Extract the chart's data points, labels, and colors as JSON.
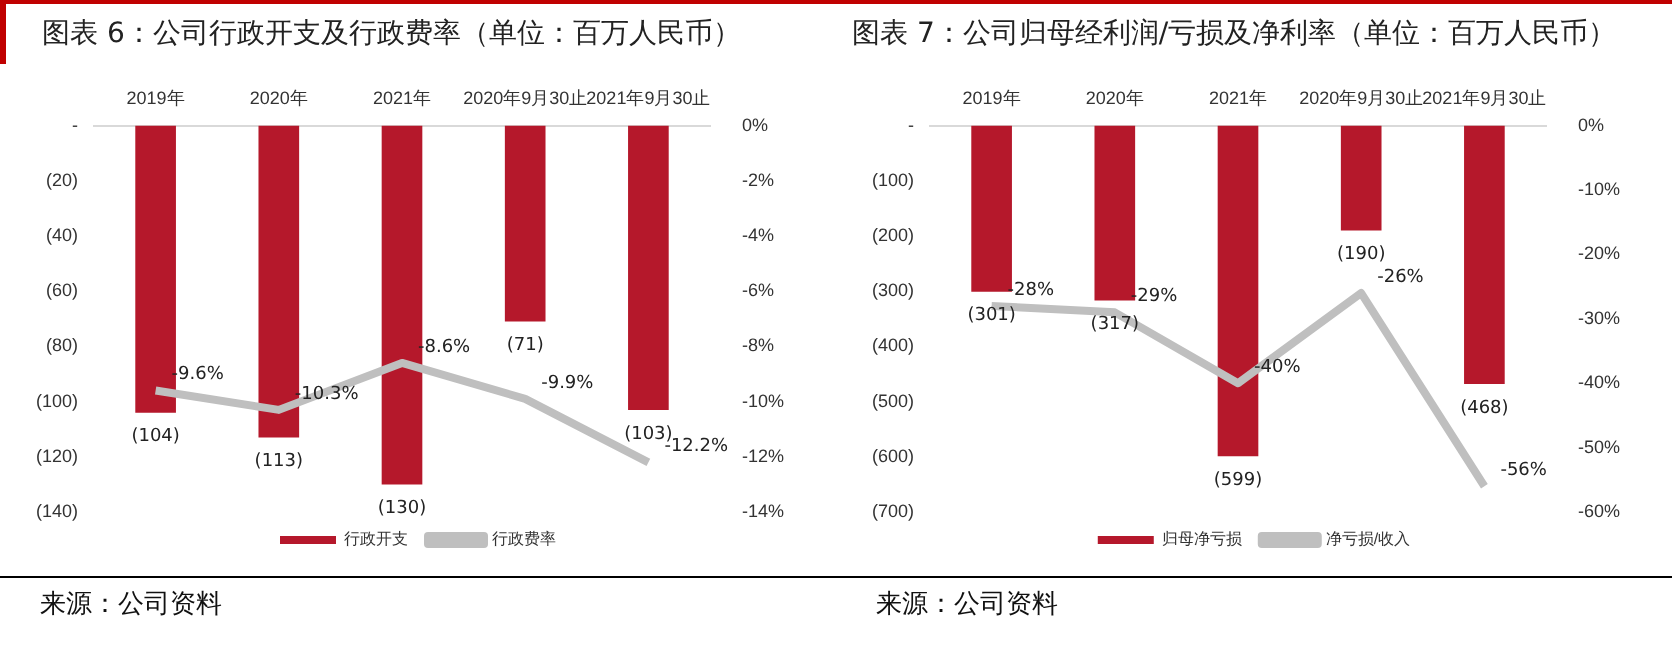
{
  "chart_data": [
    {
      "type": "bar",
      "title": "图表 6：公司行政开支及行政费率（单位：百万人民币）",
      "categories": [
        "2019年",
        "2020年",
        "2021年",
        "2020年9月30止",
        "2021年9月30止"
      ],
      "series": [
        {
          "name": "行政开支",
          "color": "#b5182b",
          "values": [
            -104,
            -113,
            -130,
            -71,
            -103
          ],
          "value_labels": [
            "(104)",
            "(113)",
            "(130)",
            "(71)",
            "(103)"
          ]
        },
        {
          "name": "行政费率",
          "type": "line",
          "axis": "y2",
          "color": "#bfbfbf",
          "values": [
            -9.6,
            -10.3,
            -8.6,
            -9.9,
            -12.2
          ],
          "value_labels": [
            "-9.6%",
            "-10.3%",
            "-8.6%",
            "-9.9%",
            "-12.2%"
          ]
        }
      ],
      "ylim": [
        -140,
        0
      ],
      "yticks": [
        {
          "value": 0,
          "label": "-"
        },
        {
          "value": -20,
          "label": "(20)"
        },
        {
          "value": -40,
          "label": "(40)"
        },
        {
          "value": -60,
          "label": "(60)"
        },
        {
          "value": -80,
          "label": "(80)"
        },
        {
          "value": -100,
          "label": "(100)"
        },
        {
          "value": -120,
          "label": "(120)"
        },
        {
          "value": -140,
          "label": "(140)"
        }
      ],
      "y2lim": [
        -14,
        0
      ],
      "y2ticks": [
        {
          "value": 0,
          "label": "0%"
        },
        {
          "value": -2,
          "label": "-2%"
        },
        {
          "value": -4,
          "label": "-4%"
        },
        {
          "value": -6,
          "label": "-6%"
        },
        {
          "value": -8,
          "label": "-8%"
        },
        {
          "value": -10,
          "label": "-10%"
        },
        {
          "value": -12,
          "label": "-12%"
        },
        {
          "value": -14,
          "label": "-14%"
        }
      ],
      "legend": "bottom",
      "grid": false,
      "marker": "none",
      "annotations": [
        "来源：公司资料"
      ]
    },
    {
      "type": "bar",
      "title": "图表 7：公司归母经利润/亏损及净利率（单位：百万人民币）",
      "categories": [
        "2019年",
        "2020年",
        "2021年",
        "2020年9月30止",
        "2021年9月30止"
      ],
      "series": [
        {
          "name": "归母净亏损",
          "color": "#b5182b",
          "values": [
            -301,
            -317,
            -599,
            -190,
            -468
          ],
          "value_labels": [
            "(301)",
            "(317)",
            "(599)",
            "(190)",
            "(468)"
          ]
        },
        {
          "name": "净亏损/收入",
          "type": "line",
          "axis": "y2",
          "color": "#bfbfbf",
          "values": [
            -28,
            -29,
            -40,
            -26,
            -56
          ],
          "value_labels": [
            "-28%",
            "-29%",
            "-40%",
            "-26%",
            "-56%"
          ]
        }
      ],
      "ylim": [
        -700,
        0
      ],
      "yticks": [
        {
          "value": 0,
          "label": "-"
        },
        {
          "value": -100,
          "label": "(100)"
        },
        {
          "value": -200,
          "label": "(200)"
        },
        {
          "value": -300,
          "label": "(300)"
        },
        {
          "value": -400,
          "label": "(400)"
        },
        {
          "value": -500,
          "label": "(500)"
        },
        {
          "value": -600,
          "label": "(600)"
        },
        {
          "value": -700,
          "label": "(700)"
        }
      ],
      "y2lim": [
        -60,
        0
      ],
      "y2ticks": [
        {
          "value": 0,
          "label": "0%"
        },
        {
          "value": -10,
          "label": "-10%"
        },
        {
          "value": -20,
          "label": "-20%"
        },
        {
          "value": -30,
          "label": "-30%"
        },
        {
          "value": -40,
          "label": "-40%"
        },
        {
          "value": -50,
          "label": "-50%"
        },
        {
          "value": -60,
          "label": "-60%"
        }
      ],
      "legend": "bottom",
      "grid": false,
      "marker": "none",
      "annotations": [
        "来源：公司资料"
      ]
    }
  ]
}
